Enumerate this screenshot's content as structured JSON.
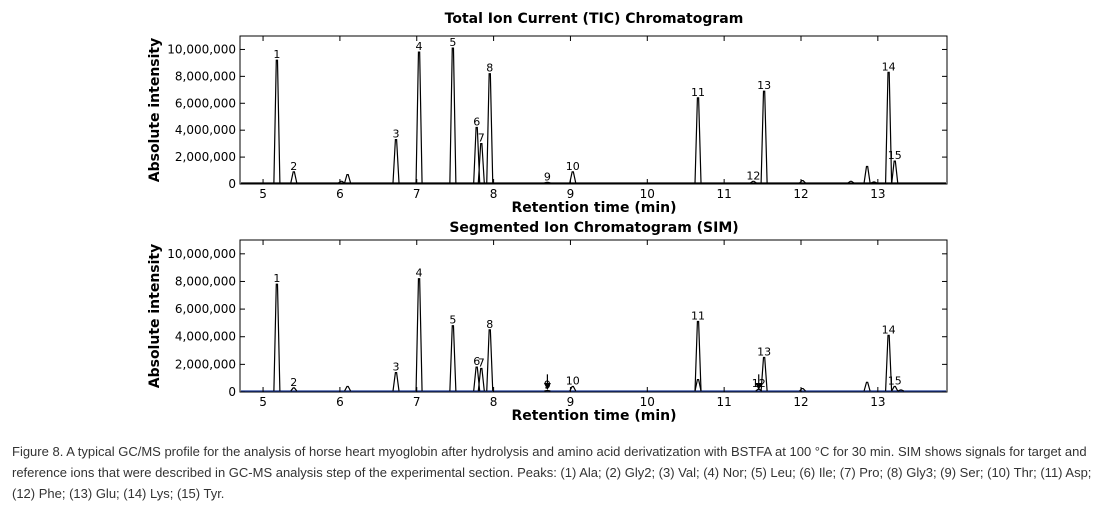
{
  "chart_data": [
    {
      "type": "line",
      "title": "Total Ion Current (TIC) Chromatogram",
      "xlabel": "Retention time (min)",
      "ylabel": "Absolute intensity",
      "xlim": [
        4.7,
        13.9
      ],
      "ylim": [
        0,
        11000000
      ],
      "xticks": [
        5,
        6,
        7,
        8,
        9,
        10,
        11,
        12,
        13
      ],
      "yticks": [
        0,
        2000000,
        4000000,
        6000000,
        8000000,
        10000000
      ],
      "ytick_labels": [
        "0",
        "2,000,000",
        "4,000,000",
        "6,000,000",
        "8,000,000",
        "10,000,000"
      ],
      "grid": false,
      "line_color": "#000000",
      "peaks": [
        {
          "label": "1",
          "x": 5.18,
          "y": 9200000
        },
        {
          "label": "2",
          "x": 5.4,
          "y": 900000
        },
        {
          "label": "3",
          "x": 6.73,
          "y": 3300000
        },
        {
          "label": "4",
          "x": 7.03,
          "y": 9800000
        },
        {
          "label": "5",
          "x": 7.47,
          "y": 10100000
        },
        {
          "label": "6",
          "x": 7.78,
          "y": 4200000
        },
        {
          "label": "7",
          "x": 7.84,
          "y": 3000000
        },
        {
          "label": "8",
          "x": 7.95,
          "y": 8200000
        },
        {
          "label": "9",
          "x": 8.7,
          "y": 120000
        },
        {
          "label": "10",
          "x": 9.03,
          "y": 900000
        },
        {
          "label": "11",
          "x": 10.66,
          "y": 6400000
        },
        {
          "label": "12",
          "x": 11.38,
          "y": 200000
        },
        {
          "label": "13",
          "x": 11.52,
          "y": 6900000
        },
        {
          "label": "14",
          "x": 13.14,
          "y": 8300000
        },
        {
          "label": "15",
          "x": 13.22,
          "y": 1700000
        }
      ],
      "minor_peaks": [
        {
          "x": 6.1,
          "y": 700000
        },
        {
          "x": 6.02,
          "y": 200000
        },
        {
          "x": 12.86,
          "y": 1300000
        },
        {
          "x": 12.02,
          "y": 250000
        },
        {
          "x": 12.65,
          "y": 200000
        },
        {
          "x": 12.95,
          "y": 150000
        }
      ]
    },
    {
      "type": "line",
      "title": "Segmented Ion Chromatogram (SIM)",
      "xlabel": "Retention time (min)",
      "ylabel": "Absolute intensity",
      "xlim": [
        4.7,
        13.9
      ],
      "ylim": [
        0,
        11000000
      ],
      "xticks": [
        5,
        6,
        7,
        8,
        9,
        10,
        11,
        12,
        13
      ],
      "yticks": [
        0,
        2000000,
        4000000,
        6000000,
        8000000,
        10000000
      ],
      "ytick_labels": [
        "0",
        "2,000,000",
        "4,000,000",
        "6,000,000",
        "8,000,000",
        "10,000,000"
      ],
      "grid": false,
      "line_color": "#000000",
      "baseline_color": "#1f3a93",
      "peaks": [
        {
          "label": "1",
          "x": 5.18,
          "y": 7800000
        },
        {
          "label": "2",
          "x": 5.4,
          "y": 300000
        },
        {
          "label": "3",
          "x": 6.73,
          "y": 1400000
        },
        {
          "label": "4",
          "x": 7.03,
          "y": 8200000
        },
        {
          "label": "5",
          "x": 7.47,
          "y": 4800000
        },
        {
          "label": "6",
          "x": 7.78,
          "y": 1800000
        },
        {
          "label": "7",
          "x": 7.84,
          "y": 1700000
        },
        {
          "label": "8",
          "x": 7.95,
          "y": 4500000
        },
        {
          "label": "9",
          "x": 8.7,
          "y": 100000
        },
        {
          "label": "10",
          "x": 9.03,
          "y": 400000
        },
        {
          "label": "11",
          "x": 10.66,
          "y": 5100000
        },
        {
          "label": "12",
          "x": 11.45,
          "y": 200000
        },
        {
          "label": "13",
          "x": 11.52,
          "y": 2500000
        },
        {
          "label": "14",
          "x": 13.14,
          "y": 4100000
        },
        {
          "label": "15",
          "x": 13.22,
          "y": 400000
        }
      ],
      "minor_peaks": [
        {
          "x": 6.1,
          "y": 400000
        },
        {
          "x": 12.86,
          "y": 700000
        },
        {
          "x": 12.02,
          "y": 250000
        },
        {
          "x": 10.66,
          "y": 900000
        },
        {
          "x": 13.3,
          "y": 150000
        }
      ],
      "arrows": [
        {
          "x": 8.7,
          "y": 700000
        },
        {
          "x": 11.45,
          "y": 700000
        }
      ]
    }
  ],
  "caption": "Figure 8. A typical GC/MS profile for the analysis of horse heart myoglobin after hydrolysis and amino acid derivatization with BSTFA at 100 °C for 30 min. SIM shows signals for target and reference ions that were described in GC-MS analysis step of the experimental section. Peaks: (1) Ala; (2) Gly2; (3) Val; (4) Nor; (5) Leu; (6) Ile; (7) Pro; (8) Gly3; (9) Ser; (10) Thr; (11) Asp; (12) Phe; (13) Glu; (14) Lys; (15) Tyr."
}
